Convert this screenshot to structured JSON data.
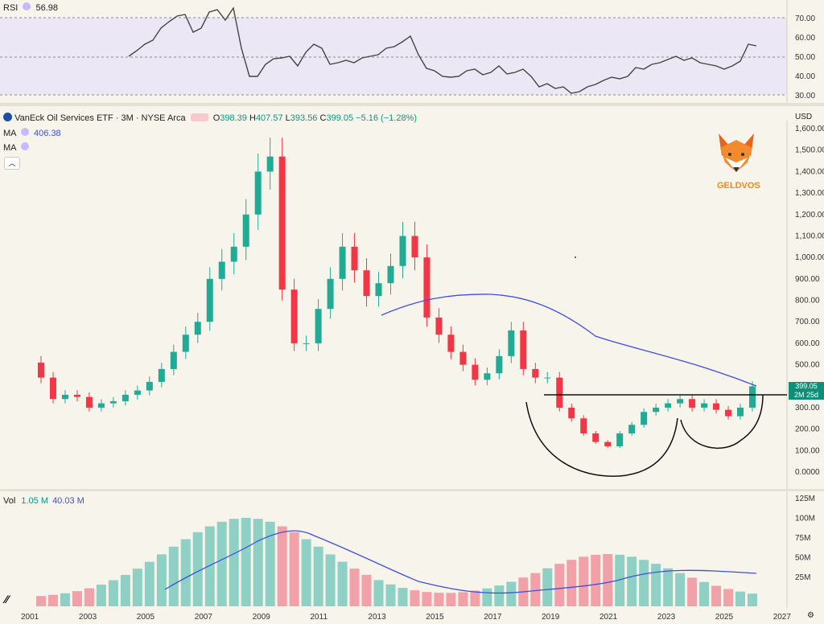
{
  "rsi": {
    "label": "RSI",
    "value": "56.98",
    "levels": [
      "70.00",
      "60.00",
      "50.00",
      "40.00",
      "30.00"
    ]
  },
  "header": {
    "title": "VanEck Oil Services ETF · 3M · NYSE Arca",
    "o_label": "O",
    "o": "398.39",
    "h_label": "H",
    "h": "407.57",
    "l_label": "L",
    "l": "393.56",
    "c_label": "C",
    "c": "399.05",
    "chg": "−5.16 (−1.28%)",
    "ma1_label": "MA",
    "ma1_value": "406.38",
    "ma2_label": "MA",
    "currency": "USD"
  },
  "brand": {
    "name": "GELDVOS"
  },
  "price_tag": {
    "price": "399.05",
    "countdown": "2M 25d"
  },
  "volume": {
    "label": "Vol",
    "v1": "1.05 M",
    "v2": "40.03 M"
  },
  "colors": {
    "up": "#22ab94",
    "down": "#f23645",
    "ma": "#3d4fe0",
    "bg": "#f7f4ec"
  },
  "chart_data": {
    "type": "candlestick",
    "title": "VanEck Oil Services ETF · 3M · NYSE Arca",
    "price_axis_ticks": [
      "1,600.00",
      "1,500.00",
      "1,400.00",
      "1,300.00",
      "1,200.00",
      "1,100.00",
      "1,000.00",
      "900.00",
      "800.00",
      "700.00",
      "600.00",
      "500.00",
      "400.00",
      "300.00",
      "200.00",
      "100.00",
      "0.0000"
    ],
    "volume_axis_ticks": [
      "125M",
      "100M",
      "75M",
      "50M",
      "25M"
    ],
    "x_ticks": [
      "2001",
      "2003",
      "2005",
      "2007",
      "2009",
      "2011",
      "2013",
      "2015",
      "2017",
      "2019",
      "2021",
      "2023",
      "2025",
      "2027"
    ],
    "price_series": [
      510,
      440,
      340,
      360,
      350,
      300,
      320,
      330,
      360,
      380,
      420,
      480,
      560,
      640,
      700,
      900,
      980,
      1050,
      1200,
      1400,
      1470,
      850,
      600,
      600,
      760,
      900,
      1050,
      940,
      820,
      880,
      960,
      1100,
      1000,
      720,
      640,
      560,
      500,
      430,
      460,
      540,
      660,
      480,
      440,
      440,
      300,
      250,
      180,
      140,
      120,
      180,
      220,
      280,
      300,
      320,
      340,
      300,
      320,
      290,
      260,
      300,
      399.05
    ],
    "resistance_level": 360,
    "annotation": "cup and handle"
  }
}
